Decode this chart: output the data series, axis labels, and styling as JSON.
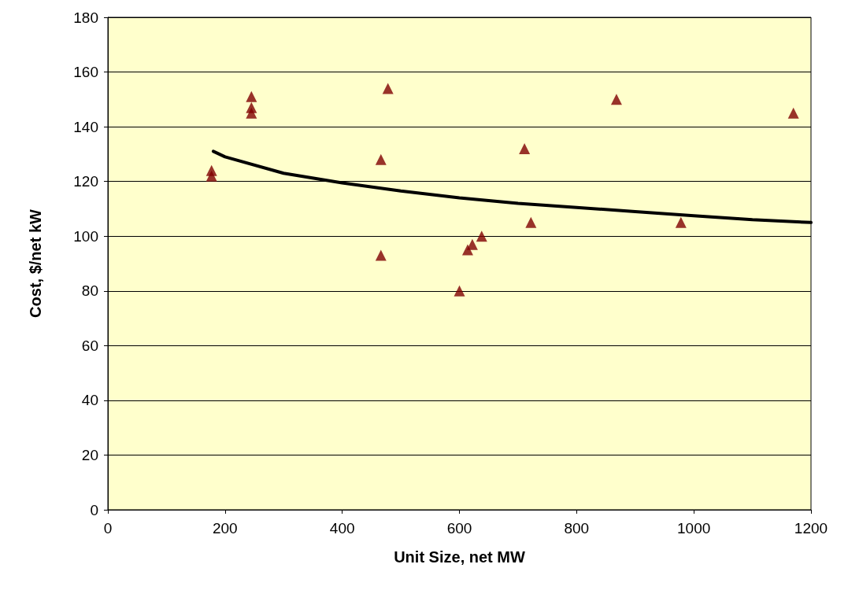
{
  "chart_data": {
    "type": "scatter",
    "xlabel": "Unit Size, net MW",
    "ylabel": "Cost, $/net kW",
    "xlim": [
      0,
      1200
    ],
    "xticks": [
      0,
      200,
      400,
      600,
      800,
      1000,
      1200
    ],
    "ylim": [
      0,
      180
    ],
    "yticks": [
      0,
      20,
      40,
      60,
      80,
      100,
      120,
      140,
      160,
      180
    ],
    "grid": "y",
    "series": [
      {
        "color": "#800000",
        "marker": "triangle",
        "x": [
          177,
          177,
          245,
          245,
          245,
          466,
          466,
          478,
          600,
          614,
          622,
          638,
          711,
          722,
          868,
          978,
          1170
        ],
        "values": [
          124,
          122,
          151,
          147,
          145,
          128,
          93,
          154,
          80,
          95,
          97,
          100,
          132,
          105,
          150,
          105,
          145
        ]
      },
      {
        "type": "line",
        "color": "#000000",
        "marker": "none",
        "line_style": "solid",
        "x": [
          180,
          200,
          300,
          400,
          500,
          600,
          700,
          800,
          900,
          1000,
          1100,
          1200
        ],
        "values": [
          131,
          129,
          123,
          119.5,
          116.5,
          114,
          112,
          110.5,
          109,
          107.5,
          106,
          105
        ]
      }
    ]
  }
}
